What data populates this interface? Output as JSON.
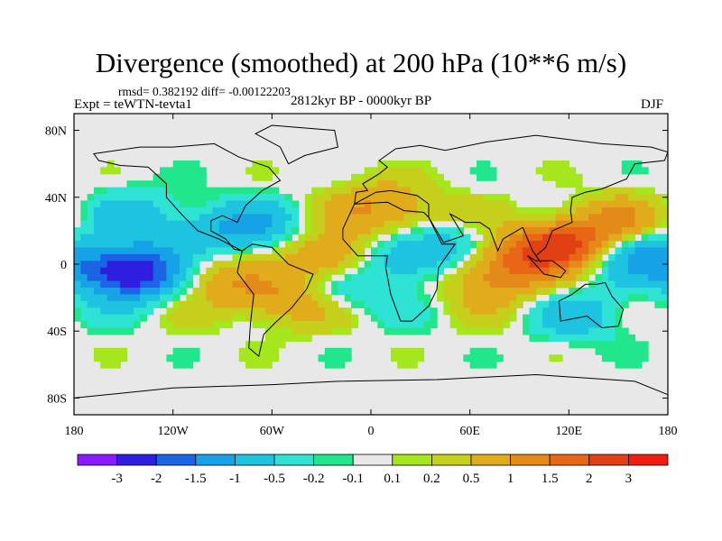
{
  "chart_data": {
    "type": "heatmap",
    "title": "Divergence (smoothed) at 200 hPa (10**6 m/s)",
    "stats": "rmsd= 0.382192 diff= -0.00122203",
    "experiment": "Expt = teWTN-tevta1",
    "period": "2812kyr BP - 0000kyr BP",
    "season": "DJF",
    "x_ticks": [
      {
        "value": -180,
        "label": "180"
      },
      {
        "value": -120,
        "label": "120W"
      },
      {
        "value": -60,
        "label": "60W"
      },
      {
        "value": 0,
        "label": "0"
      },
      {
        "value": 60,
        "label": "60E"
      },
      {
        "value": 120,
        "label": "120E"
      },
      {
        "value": 180,
        "label": "180"
      }
    ],
    "y_ticks": [
      {
        "value": 80,
        "label": "80N"
      },
      {
        "value": 40,
        "label": "40N"
      },
      {
        "value": 0,
        "label": "0"
      },
      {
        "value": -40,
        "label": "40S"
      },
      {
        "value": -80,
        "label": "80S"
      }
    ],
    "xlim": [
      -180,
      180
    ],
    "ylim": [
      -90,
      90
    ],
    "colorbar": {
      "levels": [
        "-3",
        "-2",
        "-1.5",
        "-1",
        "-0.5",
        "-0.2",
        "-0.1",
        "0.1",
        "0.2",
        "0.5",
        "1",
        "1.5",
        "2",
        "3"
      ],
      "colors": [
        "#8c1aff",
        "#2e1ee0",
        "#1c64e6",
        "#16a2e6",
        "#1ec3e0",
        "#2ee2d4",
        "#22e68c",
        "#e8e8e8",
        "#a6e61c",
        "#c6d01c",
        "#e0ac1c",
        "#e48a18",
        "#e86616",
        "#e04014",
        "#f01e10"
      ]
    },
    "features": [
      {
        "lon": -145,
        "lat": -5,
        "value": -2.6
      },
      {
        "lon": -140,
        "lat": 30,
        "value": -0.6
      },
      {
        "lon": -100,
        "lat": 18,
        "value": -0.6
      },
      {
        "lon": -90,
        "lat": -8,
        "value": 0.8
      },
      {
        "lon": -70,
        "lat": 22,
        "value": -0.8
      },
      {
        "lon": -55,
        "lat": -22,
        "value": 1.0
      },
      {
        "lon": -25,
        "lat": 5,
        "value": 1.1
      },
      {
        "lon": -15,
        "lat": -15,
        "value": -0.6
      },
      {
        "lon": 20,
        "lat": 5,
        "value": -0.9
      },
      {
        "lon": 30,
        "lat": 25,
        "value": 0.6
      },
      {
        "lon": 5,
        "lat": 35,
        "value": 0.9
      },
      {
        "lon": 45,
        "lat": 15,
        "value": -0.7
      },
      {
        "lon": 75,
        "lat": -10,
        "value": 0.9
      },
      {
        "lon": 95,
        "lat": 5,
        "value": 1.2
      },
      {
        "lon": 120,
        "lat": 12,
        "value": 1.8
      },
      {
        "lon": 130,
        "lat": -30,
        "value": -0.7
      },
      {
        "lon": 160,
        "lat": 5,
        "value": -1.4
      },
      {
        "lon": 150,
        "lat": 25,
        "value": 0.9
      }
    ]
  }
}
